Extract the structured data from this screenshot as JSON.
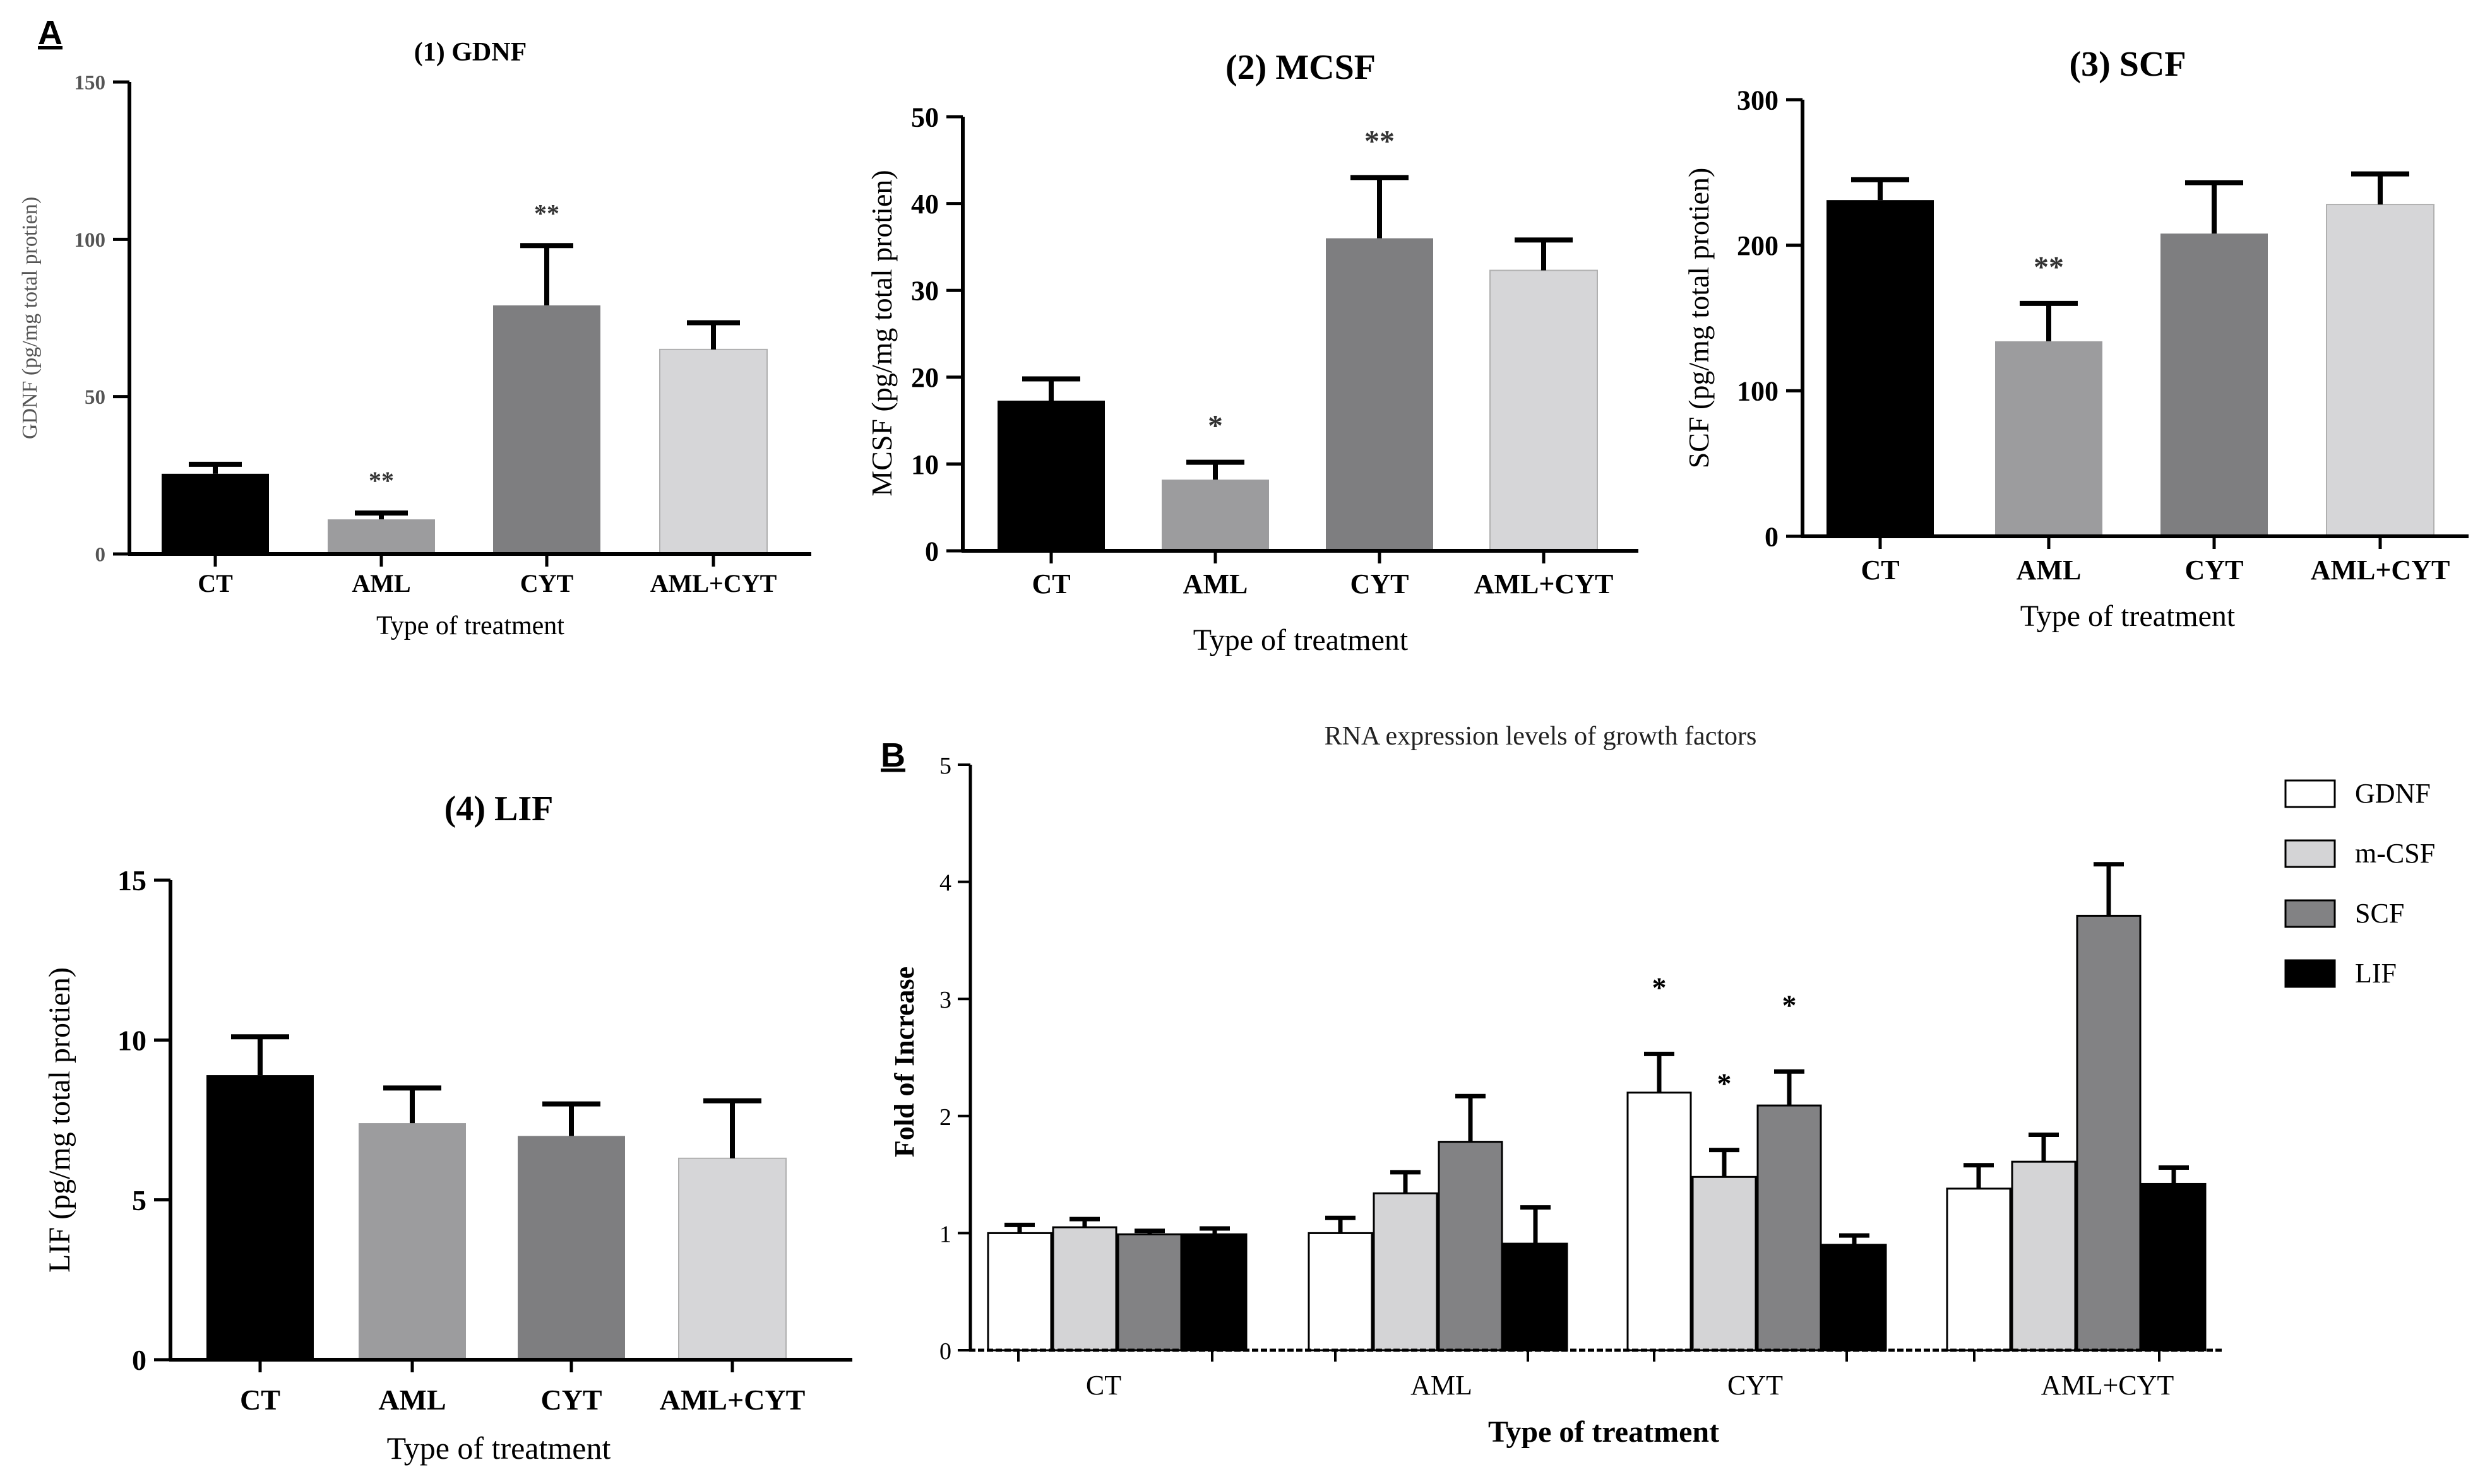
{
  "panel_labels": [
    "A",
    "B"
  ],
  "chart_data": [
    {
      "type": "bar",
      "title": "(1) GDNF",
      "xlabel": "Type of treatment",
      "ylabel": "GDNF (pg/mg total protien)",
      "categories": [
        "CT",
        "AML",
        "CYT",
        "AML+CYT"
      ],
      "values": [
        25.5,
        11,
        79,
        65
      ],
      "errors": [
        3,
        2,
        19,
        8.5
      ],
      "significance": [
        "",
        "**",
        "**",
        ""
      ],
      "ylim": [
        0,
        150
      ],
      "yticks": [
        0,
        50,
        100,
        150
      ],
      "colors": [
        "#000000",
        "#9c9c9e",
        "#7e7e80",
        "#d6d6d8"
      ]
    },
    {
      "type": "bar",
      "title": "(2) MCSF",
      "xlabel": "Type of treatment",
      "ylabel": "MCSF (pg/mg total protien)",
      "categories": [
        "CT",
        "AML",
        "CYT",
        "AML+CYT"
      ],
      "values": [
        17.3,
        8.2,
        36,
        32.3
      ],
      "errors": [
        2.5,
        2,
        7,
        3.5
      ],
      "significance": [
        "",
        "*",
        "**",
        ""
      ],
      "ylim": [
        0,
        50
      ],
      "yticks": [
        0,
        10,
        20,
        30,
        40,
        50
      ],
      "colors": [
        "#000000",
        "#9c9c9e",
        "#7e7e80",
        "#d6d6d8"
      ]
    },
    {
      "type": "bar",
      "title": "(3) SCF",
      "xlabel": "Type of treatment",
      "ylabel": "SCF (pg/mg total protien)",
      "categories": [
        "CT",
        "AML",
        "CYT",
        "AML+CYT"
      ],
      "values": [
        231,
        134,
        208,
        228
      ],
      "errors": [
        14,
        26,
        35,
        21
      ],
      "significance": [
        "",
        "**",
        "",
        ""
      ],
      "ylim": [
        0,
        300
      ],
      "yticks": [
        0,
        100,
        200,
        300
      ],
      "colors": [
        "#000000",
        "#9c9c9e",
        "#7e7e80",
        "#d6d6d8"
      ]
    },
    {
      "type": "bar",
      "title": "(4) LIF",
      "xlabel": "Type of treatment",
      "ylabel": "LIF (pg/mg total protien)",
      "categories": [
        "CT",
        "AML",
        "CYT",
        "AML+CYT"
      ],
      "values": [
        8.9,
        7.4,
        7.0,
        6.3
      ],
      "errors": [
        1.2,
        1.1,
        1.0,
        1.8
      ],
      "significance": [
        "",
        "",
        "",
        ""
      ],
      "ylim": [
        0,
        15
      ],
      "yticks": [
        0,
        5,
        10,
        15
      ],
      "colors": [
        "#000000",
        "#9c9c9e",
        "#7e7e80",
        "#d6d6d8"
      ]
    },
    {
      "type": "bar",
      "title": "RNA expression levels of growth factors",
      "xlabel": "Type of treatment",
      "ylabel": "Fold of Increase",
      "categories": [
        "CT",
        "AML",
        "CYT",
        "AML+CYT"
      ],
      "ylim": [
        0,
        5
      ],
      "yticks": [
        0,
        1,
        2,
        3,
        4,
        5
      ],
      "legend_position": "top-right",
      "series": [
        {
          "name": "GDNF",
          "color": "#ffffff",
          "values": [
            1.0,
            1.0,
            2.2,
            1.38
          ],
          "errors": [
            0.07,
            0.13,
            0.33,
            0.2
          ],
          "significance": [
            "",
            "",
            "*",
            ""
          ]
        },
        {
          "name": "m-CSF",
          "color": "#d4d4d6",
          "values": [
            1.05,
            1.34,
            1.48,
            1.61
          ],
          "errors": [
            0.07,
            0.18,
            0.23,
            0.23
          ],
          "significance": [
            "",
            "",
            "*",
            ""
          ]
        },
        {
          "name": "SCF",
          "color": "#828284",
          "values": [
            0.99,
            1.78,
            2.09,
            3.71
          ],
          "errors": [
            0.03,
            0.39,
            0.29,
            0.44
          ],
          "significance": [
            "",
            "",
            "*",
            ""
          ]
        },
        {
          "name": "LIF",
          "color": "#000000",
          "values": [
            0.99,
            0.91,
            0.9,
            1.42
          ],
          "errors": [
            0.05,
            0.31,
            0.08,
            0.14
          ],
          "significance": [
            "",
            "",
            "",
            ""
          ]
        }
      ]
    }
  ]
}
